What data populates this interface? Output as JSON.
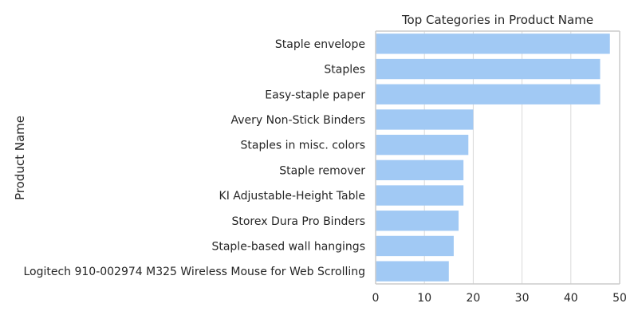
{
  "chart_data": {
    "type": "bar",
    "orientation": "horizontal",
    "title": "Top Categories in Product Name",
    "xlabel": "",
    "ylabel": "Product Name",
    "categories": [
      "Staple envelope",
      "Staples",
      "Easy-staple paper",
      "Avery Non-Stick Binders",
      "Staples in misc. colors",
      "Staple remover",
      "KI Adjustable-Height Table",
      "Storex Dura Pro Binders",
      "Staple-based wall hangings",
      "Logitech 910-002974 M325 Wireless Mouse for Web Scrolling"
    ],
    "values": [
      48,
      46,
      46,
      20,
      19,
      18,
      18,
      17,
      16,
      15
    ],
    "xlim": [
      0,
      50
    ],
    "xticks": [
      0,
      10,
      20,
      30,
      40,
      50
    ],
    "grid": true,
    "legend": "none",
    "colors": {
      "bar": "#a1c9f4",
      "grid": "#d9d9d9",
      "spine": "#cccccc"
    }
  }
}
